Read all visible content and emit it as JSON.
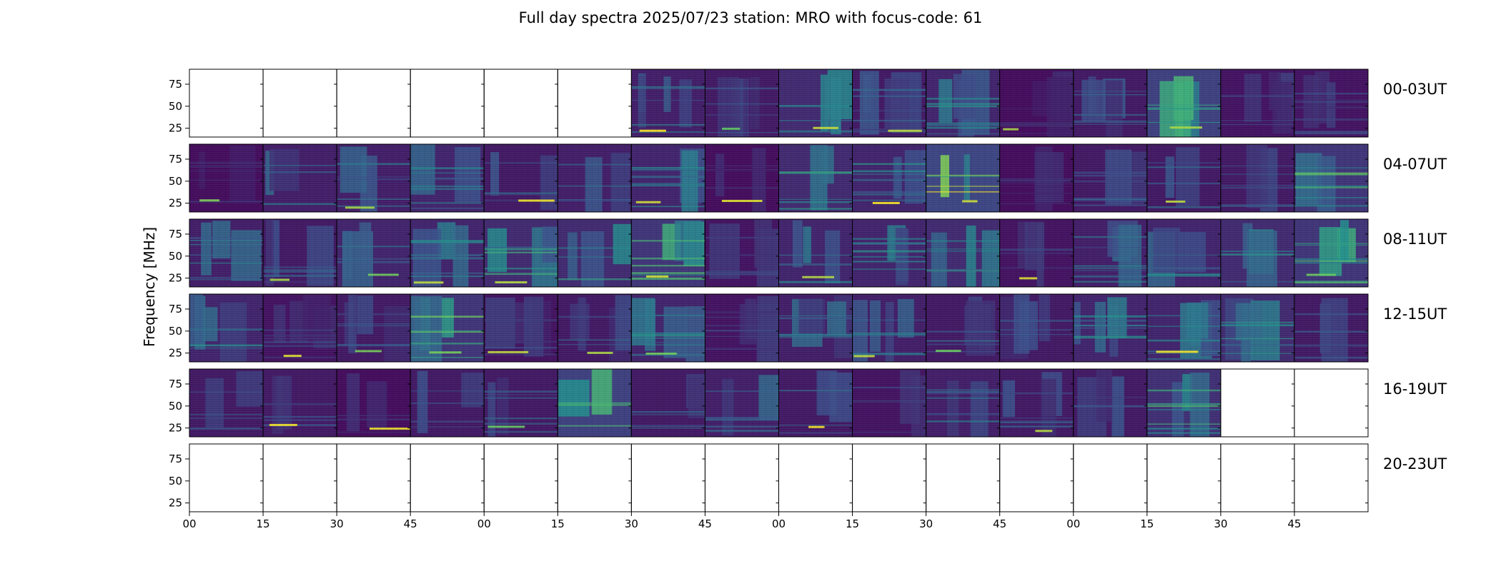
{
  "chart_data": {
    "type": "heatmap",
    "title": "Full day spectra 2025/07/23 station: MRO with focus-code: 61",
    "ylabel": "Frequency [MHz]",
    "xlabel": "",
    "ylim": [
      15,
      92
    ],
    "yticks": [
      "75",
      "50",
      "25"
    ],
    "ytick_values": [
      75,
      50,
      25
    ],
    "xticks": [
      "00",
      "15",
      "30",
      "45",
      "00",
      "15",
      "30",
      "45",
      "00",
      "15",
      "30",
      "45",
      "00",
      "15",
      "30",
      "45"
    ],
    "colormap": [
      "#440154",
      "#3b528b",
      "#21918c",
      "#5ec962",
      "#fde725"
    ],
    "grid": false,
    "rows": [
      {
        "label": "00-03UT",
        "panels": [
          0,
          0,
          0,
          0,
          0,
          0,
          1,
          1,
          1,
          1,
          1,
          1,
          1,
          1,
          1,
          1
        ]
      },
      {
        "label": "04-07UT",
        "panels": [
          1,
          1,
          1,
          1,
          1,
          1,
          1,
          1,
          1,
          1,
          1,
          1,
          1,
          1,
          1,
          1
        ]
      },
      {
        "label": "08-11UT",
        "panels": [
          1,
          1,
          1,
          1,
          1,
          1,
          1,
          1,
          1,
          1,
          1,
          1,
          1,
          1,
          1,
          1
        ]
      },
      {
        "label": "12-15UT",
        "panels": [
          1,
          1,
          1,
          1,
          1,
          1,
          1,
          1,
          1,
          1,
          1,
          1,
          1,
          1,
          1,
          1
        ]
      },
      {
        "label": "16-19UT",
        "panels": [
          1,
          1,
          1,
          1,
          1,
          1,
          1,
          1,
          1,
          1,
          1,
          1,
          1,
          1,
          0,
          0
        ]
      },
      {
        "label": "20-23UT",
        "panels": [
          0,
          0,
          0,
          0,
          0,
          0,
          0,
          0,
          0,
          0,
          0,
          0,
          0,
          0,
          0,
          0
        ]
      }
    ],
    "panel_intensity": [
      [
        0,
        0,
        0,
        0,
        0,
        0,
        0.25,
        0.2,
        0.35,
        0.2,
        0.3,
        0.1,
        0.2,
        0.55,
        0.15,
        0.15
      ],
      [
        0.1,
        0.25,
        0.25,
        0.3,
        0.2,
        0.25,
        0.3,
        0.1,
        0.35,
        0.3,
        0.6,
        0.1,
        0.2,
        0.2,
        0.2,
        0.45
      ],
      [
        0.25,
        0.2,
        0.3,
        0.3,
        0.35,
        0.35,
        0.45,
        0.15,
        0.3,
        0.3,
        0.35,
        0.15,
        0.25,
        0.3,
        0.35,
        0.45
      ],
      [
        0.3,
        0.15,
        0.2,
        0.45,
        0.15,
        0.2,
        0.3,
        0.15,
        0.25,
        0.25,
        0.2,
        0.2,
        0.3,
        0.3,
        0.35,
        0.2
      ],
      [
        0.2,
        0.2,
        0.1,
        0.2,
        0.2,
        0.55,
        0.2,
        0.25,
        0.2,
        0.15,
        0.25,
        0.2,
        0.2,
        0.4,
        0,
        0
      ],
      [
        0,
        0,
        0,
        0,
        0,
        0,
        0,
        0,
        0,
        0,
        0,
        0,
        0,
        0,
        0,
        0
      ]
    ]
  }
}
